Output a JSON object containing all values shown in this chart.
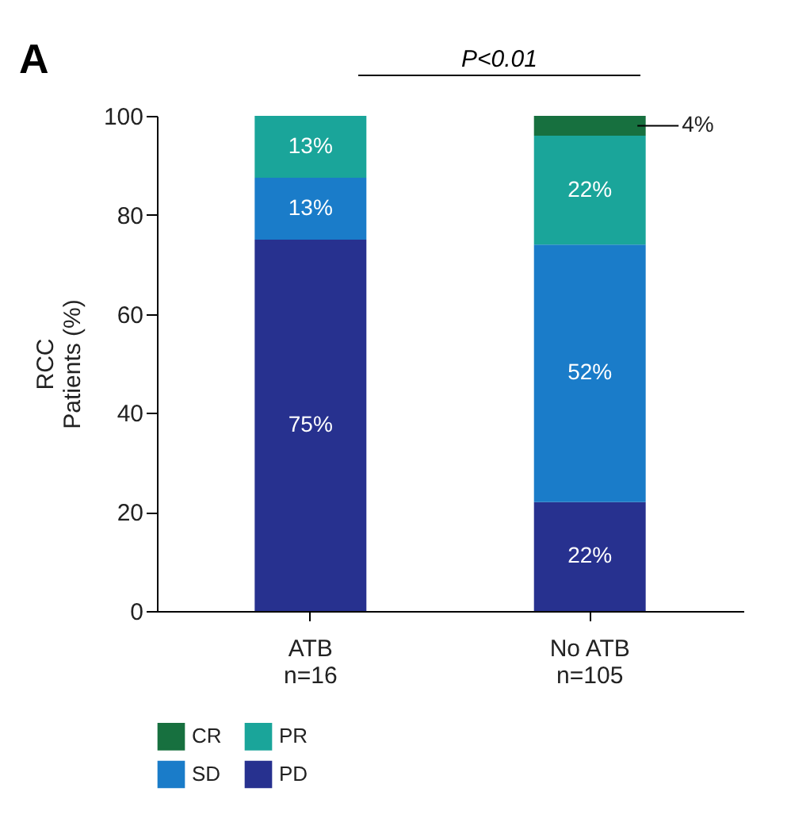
{
  "chart_data": {
    "type": "bar",
    "stacked": true,
    "ylabel": "RCC\nPatients (%)",
    "categories": [
      "ATB\nn=16",
      "No ATB\nn=105"
    ],
    "series": [
      {
        "name": "PD",
        "color": "#27318f",
        "values": [
          75,
          22
        ],
        "value_labels": [
          "75%",
          "22%"
        ]
      },
      {
        "name": "SD",
        "color": "#1a7cc9",
        "values": [
          12.5,
          52
        ],
        "value_labels": [
          "13%",
          "52%"
        ]
      },
      {
        "name": "PR",
        "color": "#1aa59a",
        "values": [
          12.5,
          22
        ],
        "value_labels": [
          "13%",
          "22%"
        ]
      },
      {
        "name": "CR",
        "color": "#17703f",
        "values": [
          null,
          4
        ],
        "value_labels": [
          null,
          "4%"
        ]
      }
    ],
    "ylim": [
      0,
      100
    ],
    "yticks": [
      0,
      20,
      40,
      60,
      80,
      100
    ],
    "grid": false,
    "legend": "bottom",
    "annotations": [
      "A",
      "P<0.01"
    ]
  }
}
